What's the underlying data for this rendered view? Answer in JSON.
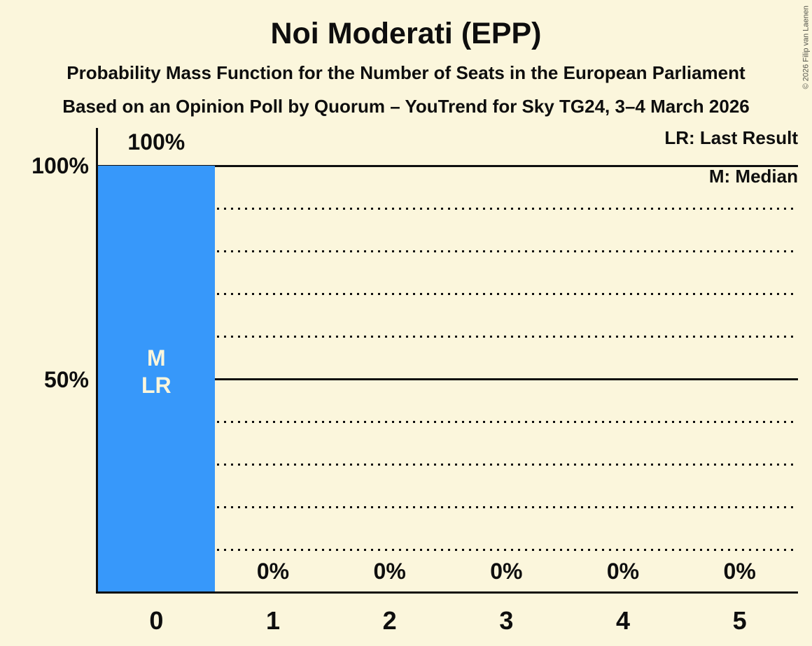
{
  "header": {
    "title": "Noi Moderati (EPP)",
    "subtitle1": "Probability Mass Function for the Number of Seats in the European Parliament",
    "subtitle2": "Based on an Opinion Poll by Quorum – YouTrend for Sky TG24, 3–4 March 2026"
  },
  "legend": {
    "lr_label": "LR: Last Result",
    "m_label": "M: Median"
  },
  "copyright_notice": "© 2026 Filip van Laenen",
  "colors": {
    "background": "#FBF6DC",
    "bar": "#3798FA",
    "text": "#0E0E0E",
    "bar_annotation_text": "#FBF6DC",
    "copyright_text": "#55554C"
  },
  "chart_data": {
    "type": "bar",
    "title": "Noi Moderati (EPP)",
    "categories": [
      "0",
      "1",
      "2",
      "3",
      "4",
      "5"
    ],
    "values": [
      100,
      0,
      0,
      0,
      0,
      0
    ],
    "value_labels": [
      "100%",
      "0%",
      "0%",
      "0%",
      "0%",
      "0%"
    ],
    "y_axis_ticks": [
      {
        "value": 100,
        "label": "100%"
      },
      {
        "value": 50,
        "label": "50%"
      }
    ],
    "ylim": [
      0,
      100
    ],
    "gridlines_solid": [
      50,
      100
    ],
    "gridlines_dotted": [
      10,
      20,
      30,
      40,
      60,
      70,
      80,
      90
    ],
    "bar_annotations": [
      {
        "category_index": 0,
        "lines": [
          "M",
          "LR"
        ]
      }
    ],
    "legend_position": "top-right",
    "grid": "horizontal-only"
  }
}
